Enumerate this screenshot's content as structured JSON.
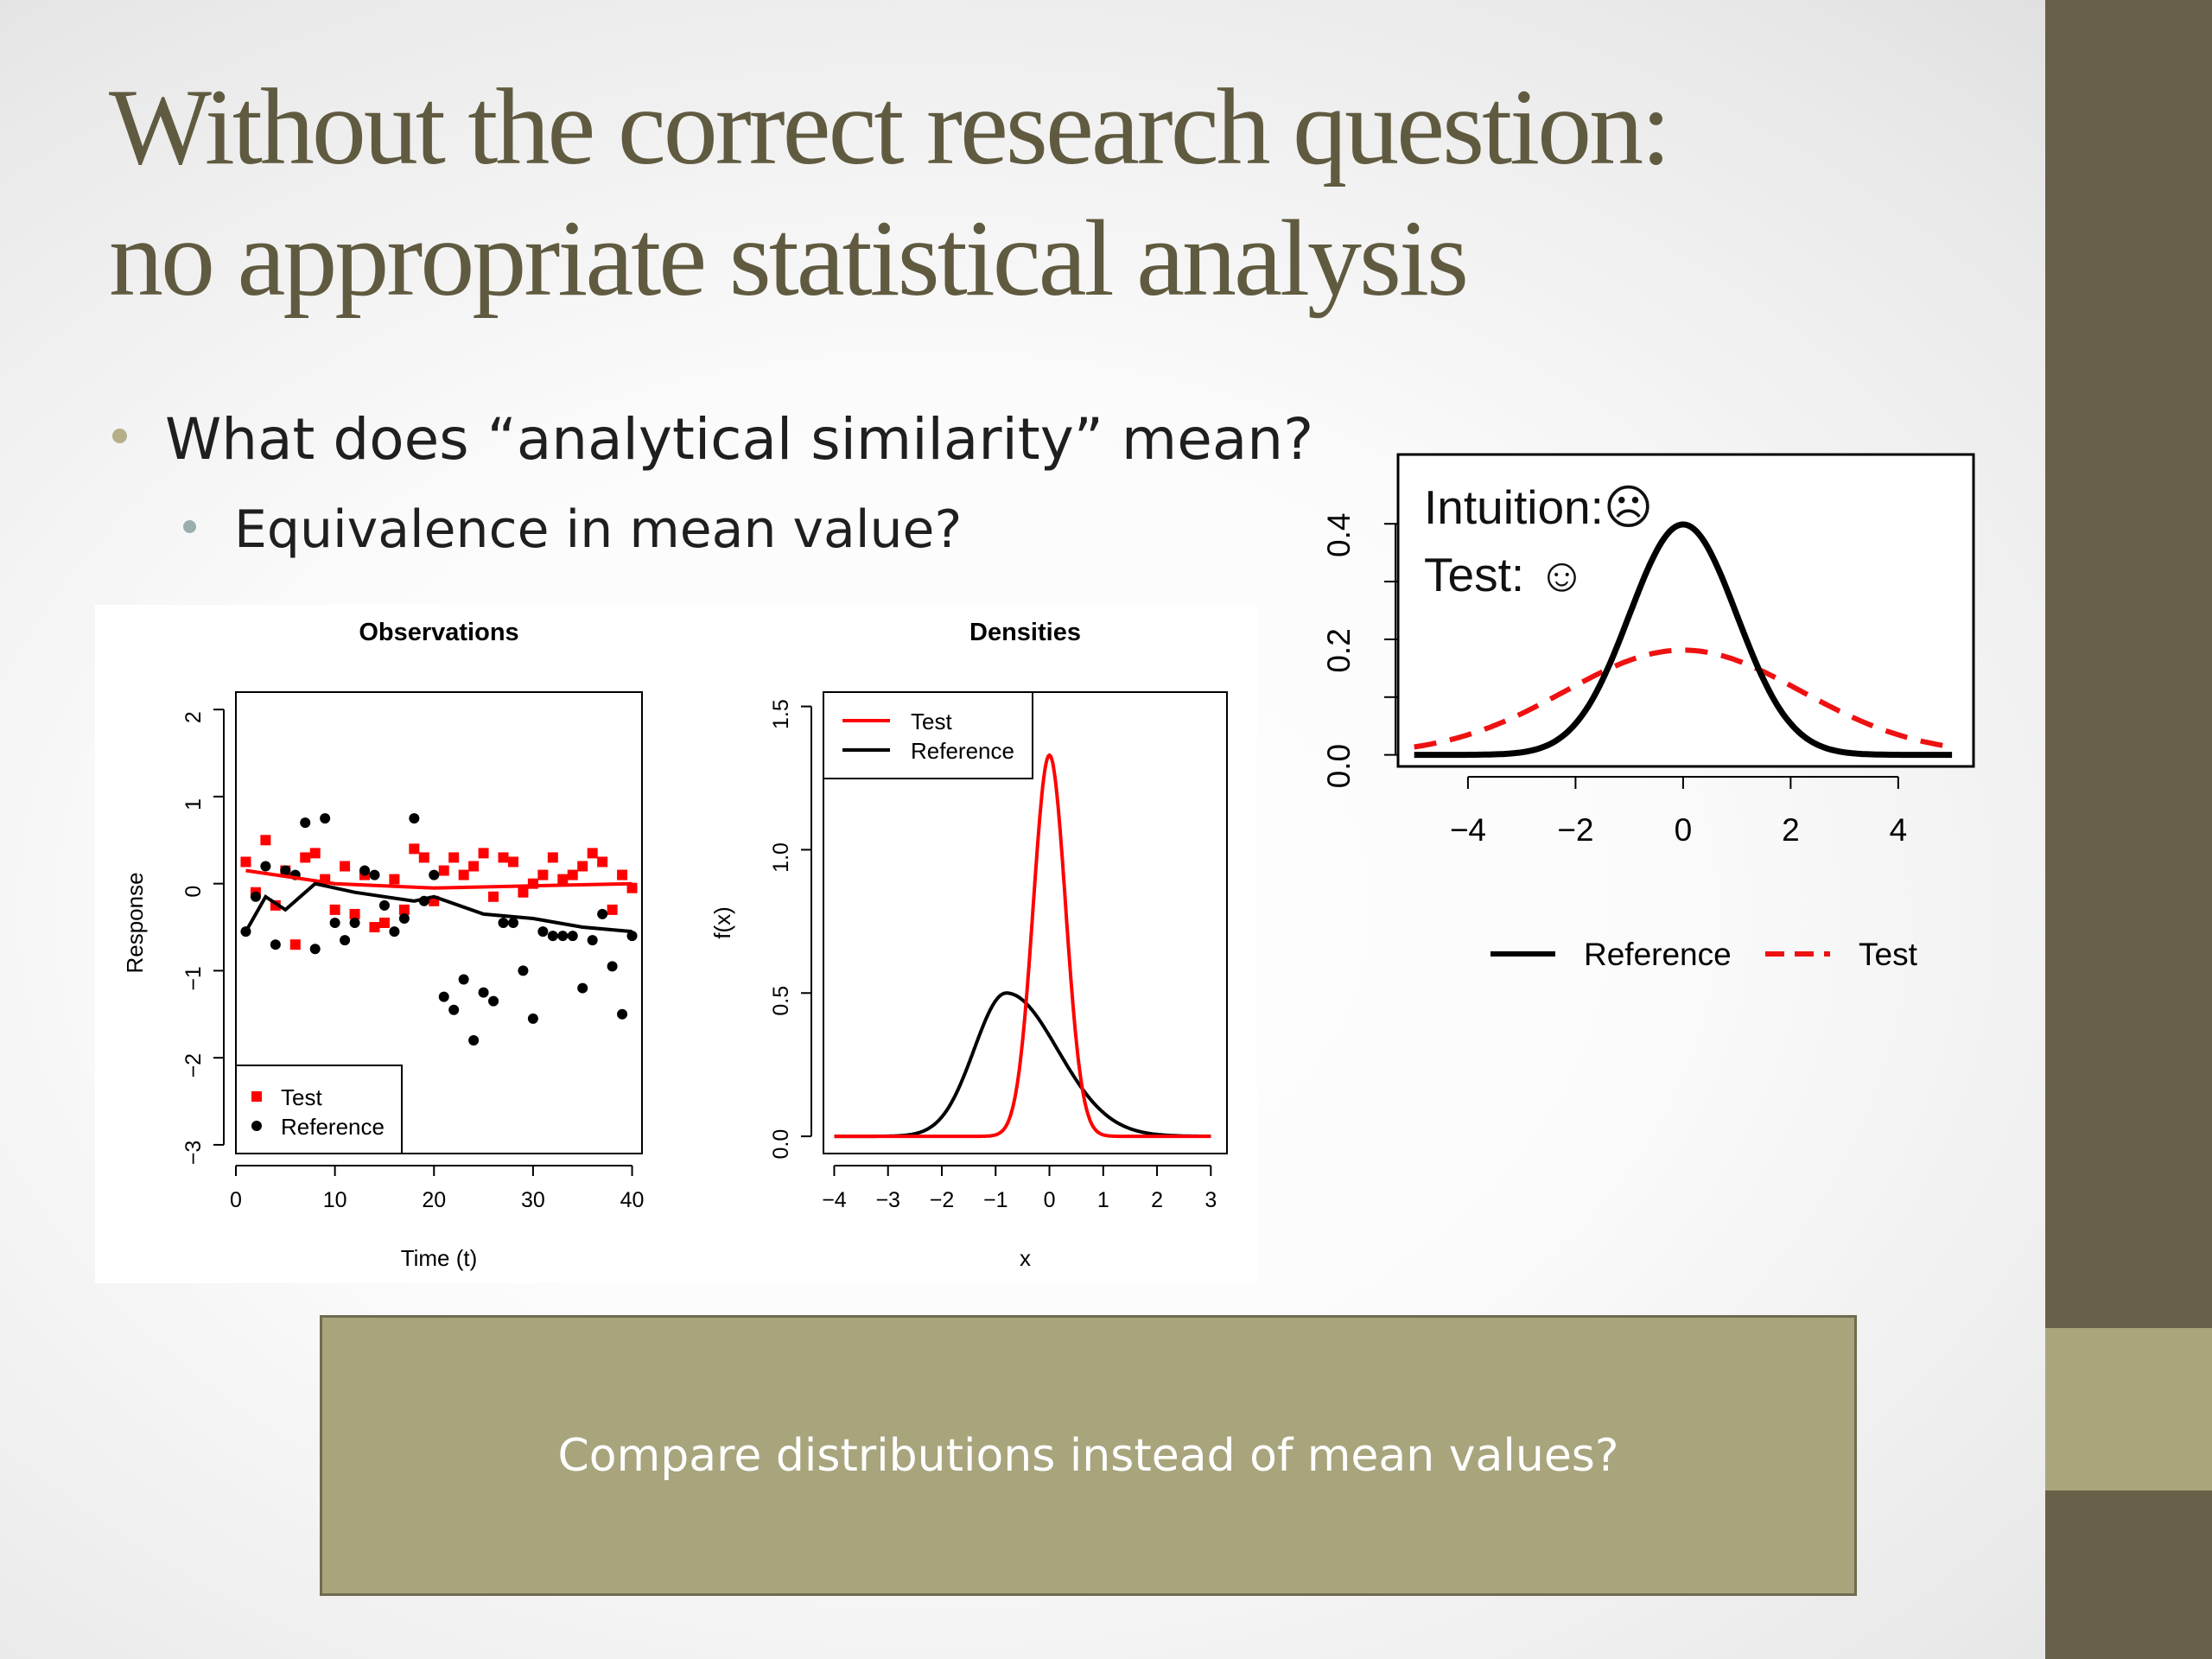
{
  "slide": {
    "title_line1": "Without the correct research question:",
    "title_line2": "no appropriate statistical analysis",
    "bullet_level1": "What does “analytical similarity” mean?",
    "bullet_level2": "Equivalence in mean value?",
    "callout": "Compare distributions instead of mean values?",
    "colors": {
      "title": "#605b40",
      "sidebar": "#686048",
      "sidebar_accent": "#aaa57b",
      "callout_fill": "#a8a47c",
      "test_series": "#ff0000",
      "reference_series": "#000000",
      "test_dashed": "#ee1111"
    }
  },
  "chart_data": [
    {
      "type": "scatter",
      "title": "Observations",
      "xlabel": "Time (t)",
      "ylabel": "Response",
      "xlim": [
        0,
        41
      ],
      "ylim": [
        -3.1,
        2.2
      ],
      "xticks": [
        0,
        10,
        20,
        30,
        40
      ],
      "yticks": [
        -3,
        -2,
        -1,
        0,
        1,
        2
      ],
      "legend_position": "bottom-left",
      "series": [
        {
          "name": "Test",
          "marker": "square",
          "x": [
            1,
            2,
            3,
            4,
            5,
            6,
            7,
            8,
            9,
            10,
            11,
            12,
            13,
            14,
            15,
            16,
            17,
            18,
            19,
            20,
            21,
            22,
            23,
            24,
            25,
            26,
            27,
            28,
            29,
            30,
            31,
            32,
            33,
            34,
            35,
            36,
            37,
            38,
            39,
            40
          ],
          "y": [
            0.25,
            -0.1,
            0.5,
            -0.25,
            0.15,
            -0.7,
            0.3,
            0.35,
            0.05,
            -0.3,
            0.2,
            -0.35,
            0.1,
            -0.5,
            -0.45,
            0.05,
            -0.3,
            0.4,
            0.3,
            -0.2,
            0.15,
            0.3,
            0.1,
            0.2,
            0.35,
            -0.15,
            0.3,
            0.25,
            -0.1,
            0.0,
            0.1,
            0.3,
            0.05,
            0.1,
            0.2,
            0.35,
            0.25,
            -0.3,
            0.1,
            -0.05
          ],
          "fit": {
            "x": [
              1,
              10,
              20,
              40
            ],
            "y": [
              0.15,
              0.0,
              -0.05,
              0.0
            ]
          }
        },
        {
          "name": "Reference",
          "marker": "circle",
          "x": [
            1,
            2,
            3,
            4,
            5,
            6,
            7,
            8,
            9,
            10,
            11,
            12,
            13,
            14,
            15,
            16,
            17,
            18,
            19,
            20,
            21,
            22,
            23,
            24,
            25,
            26,
            27,
            28,
            29,
            30,
            31,
            32,
            33,
            34,
            35,
            36,
            37,
            38,
            39,
            40
          ],
          "y": [
            -0.55,
            -0.15,
            0.2,
            -0.7,
            0.15,
            0.1,
            0.7,
            -0.75,
            0.75,
            -0.45,
            -0.65,
            -0.45,
            0.15,
            0.1,
            -0.25,
            -0.55,
            -0.4,
            0.75,
            -0.2,
            0.1,
            -1.3,
            -1.45,
            -1.1,
            -1.8,
            -1.25,
            -1.35,
            -0.45,
            -0.45,
            -1.0,
            -1.55,
            -0.55,
            -0.6,
            -0.6,
            -0.6,
            -1.2,
            -0.65,
            -0.35,
            -0.95,
            -1.5,
            -0.6
          ],
          "fit": {
            "x": [
              1,
              3,
              5,
              8,
              10,
              12,
              15,
              18,
              20,
              25,
              30,
              35,
              40
            ],
            "y": [
              -0.55,
              -0.15,
              -0.3,
              0.0,
              -0.05,
              -0.1,
              -0.15,
              -0.2,
              -0.15,
              -0.35,
              -0.4,
              -0.5,
              -0.55
            ]
          }
        }
      ]
    },
    {
      "type": "line",
      "title": "Densities",
      "xlabel": "x",
      "ylabel": "f(x)",
      "xlim": [
        -4.2,
        3.3
      ],
      "ylim": [
        -0.06,
        1.55
      ],
      "xticks": [
        -4,
        -3,
        -2,
        -1,
        0,
        1,
        2,
        3
      ],
      "xtick_labels": [
        "−4",
        "−3",
        "−2",
        "−1",
        "0",
        "1",
        "2",
        "3"
      ],
      "yticks": [
        0.0,
        0.5,
        1.0,
        1.5
      ],
      "ytick_labels": [
        "0.0",
        "0.5",
        "1.0",
        "1.5"
      ],
      "legend_position": "top-left",
      "series": [
        {
          "name": "Test",
          "distribution": "normal",
          "mean": 0.0,
          "sd": 0.3,
          "peak": 1.33,
          "x_range": [
            -4,
            3
          ]
        },
        {
          "name": "Reference",
          "distribution": "skewed",
          "mode": -0.8,
          "peak": 0.5,
          "x_range": [
            -4,
            3
          ]
        }
      ]
    },
    {
      "type": "line",
      "title": "",
      "xlabel": "",
      "ylabel": "",
      "xlim": [
        -5.3,
        5.4
      ],
      "ylim": [
        -0.02,
        0.52
      ],
      "xticks": [
        -4,
        -2,
        0,
        2,
        4
      ],
      "xtick_labels": [
        "−4",
        "−2",
        "0",
        "2",
        "4"
      ],
      "yticks": [
        0.0,
        0.2,
        0.4
      ],
      "ytick_labels": [
        "0.0",
        "0.2",
        "0.4"
      ],
      "legend_position": "bottom",
      "annotations": [
        "Intuition:☹",
        "Test: ☺"
      ],
      "series": [
        {
          "name": "Reference",
          "distribution": "normal",
          "mean": 0,
          "sd": 1.0,
          "line": "solid",
          "x_range": [
            -5,
            5
          ]
        },
        {
          "name": "Test",
          "distribution": "normal",
          "mean": 0,
          "sd": 2.2,
          "line": "dashed",
          "x_range": [
            -5,
            5
          ]
        }
      ]
    }
  ]
}
